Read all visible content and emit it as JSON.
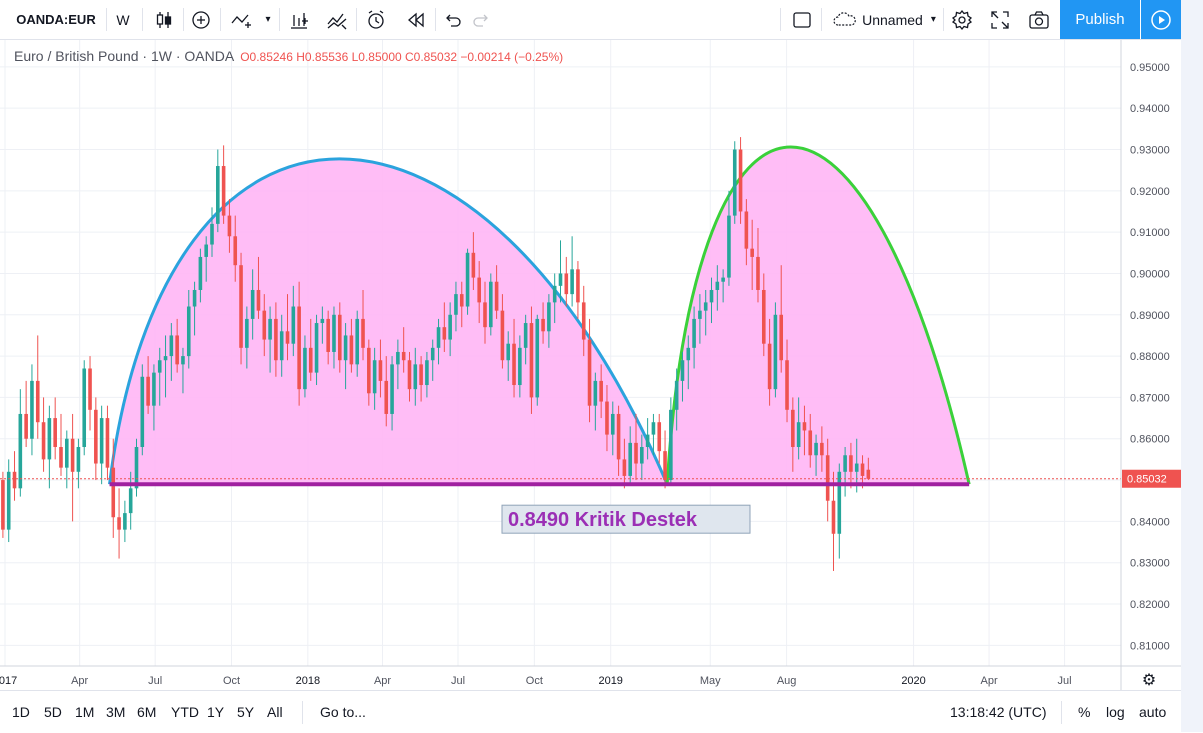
{
  "toolbar": {
    "symbol": "OANDA:EUR",
    "interval": "W",
    "layout_name": "Unnamed",
    "publish_label": "Publish",
    "icons": [
      "candles-icon",
      "add-indicator-icon",
      "indicators-icon",
      "compare-icon",
      "alerts-icon",
      "replay-icon",
      "undo-icon",
      "redo-icon",
      "fullscreen-icon",
      "settings-icon",
      "snapshot-icon",
      "play-icon"
    ]
  },
  "legend": {
    "title": "Euro / British Pound · 1W · OANDA",
    "ohlc": "O0.85246 H0.85536 L0.85000 C0.85032 −0.00214 (−0.25%)"
  },
  "bottom": {
    "ranges": [
      "1D",
      "5D",
      "1M",
      "3M",
      "6M",
      "YTD",
      "1Y",
      "5Y",
      "All"
    ],
    "goto": "Go to...",
    "time": "13:18:42 (UTC)",
    "percent": "%",
    "log": "log",
    "auto": "auto"
  },
  "colors": {
    "up": "#26a69a",
    "down": "#ef5350",
    "fill": "#ffb6f5",
    "arc1": "#2ba3dd",
    "arc2": "#3ad13a",
    "support": "#a020a0",
    "accent": "#2196f3"
  },
  "chart_data": {
    "type": "candlestick",
    "symbol": "EURGBP",
    "timeframe": "1W",
    "ylim": [
      0.805,
      0.9565
    ],
    "y_ticks": [
      "0.95000",
      "0.94000",
      "0.93000",
      "0.92000",
      "0.91000",
      "0.90000",
      "0.89000",
      "0.88000",
      "0.87000",
      "0.86000",
      "0.85000",
      "0.84000",
      "0.83000",
      "0.82000",
      "0.81000"
    ],
    "x_ticks": [
      {
        "label": "2017",
        "date": "2017-01-01"
      },
      {
        "label": "Apr",
        "date": "2017-04-01"
      },
      {
        "label": "Jul",
        "date": "2017-07-01"
      },
      {
        "label": "Oct",
        "date": "2017-10-01"
      },
      {
        "label": "2018",
        "date": "2018-01-01"
      },
      {
        "label": "Apr",
        "date": "2018-04-01"
      },
      {
        "label": "Jul",
        "date": "2018-07-01"
      },
      {
        "label": "Oct",
        "date": "2018-10-01"
      },
      {
        "label": "2019",
        "date": "2019-01-01"
      },
      {
        "label": "May",
        "date": "2019-05-01"
      },
      {
        "label": "Aug",
        "date": "2019-08-01"
      },
      {
        "label": "2020",
        "date": "2020-01-01"
      },
      {
        "label": "Apr",
        "date": "2020-04-01"
      },
      {
        "label": "Jul",
        "date": "2020-07-01"
      }
    ],
    "x_range": [
      "2016-12-26",
      "2020-09-07"
    ],
    "grid": true,
    "last_price": "0.85032",
    "support": {
      "value": 0.849,
      "label": "0.8490 Kritik Destek",
      "from": "2017-05-07",
      "to": "2020-03-08"
    },
    "arcs": [
      {
        "from": "2017-05-07",
        "to": "2019-03-10",
        "peak_date": "2018-04-01",
        "peak": 0.931
      },
      {
        "from": "2019-03-10",
        "to": "2020-03-08",
        "peak_date": "2019-09-01",
        "peak": 0.934
      }
    ],
    "candles": [
      [
        0.85,
        0.852,
        0.836,
        0.838
      ],
      [
        0.838,
        0.855,
        0.835,
        0.852
      ],
      [
        0.852,
        0.857,
        0.845,
        0.848
      ],
      [
        0.848,
        0.872,
        0.846,
        0.866
      ],
      [
        0.866,
        0.874,
        0.858,
        0.86
      ],
      [
        0.86,
        0.878,
        0.856,
        0.874
      ],
      [
        0.874,
        0.885,
        0.86,
        0.864
      ],
      [
        0.864,
        0.87,
        0.852,
        0.855
      ],
      [
        0.855,
        0.868,
        0.848,
        0.865
      ],
      [
        0.865,
        0.87,
        0.855,
        0.858
      ],
      [
        0.858,
        0.866,
        0.851,
        0.853
      ],
      [
        0.853,
        0.862,
        0.848,
        0.86
      ],
      [
        0.86,
        0.866,
        0.84,
        0.852
      ],
      [
        0.852,
        0.86,
        0.848,
        0.858
      ],
      [
        0.858,
        0.879,
        0.856,
        0.877
      ],
      [
        0.877,
        0.88,
        0.862,
        0.867
      ],
      [
        0.867,
        0.87,
        0.85,
        0.854
      ],
      [
        0.854,
        0.868,
        0.849,
        0.865
      ],
      [
        0.865,
        0.868,
        0.85,
        0.853
      ],
      [
        0.853,
        0.86,
        0.836,
        0.841
      ],
      [
        0.841,
        0.848,
        0.831,
        0.838
      ],
      [
        0.838,
        0.845,
        0.835,
        0.842
      ],
      [
        0.842,
        0.852,
        0.838,
        0.848
      ],
      [
        0.848,
        0.86,
        0.846,
        0.858
      ],
      [
        0.858,
        0.878,
        0.856,
        0.875
      ],
      [
        0.875,
        0.88,
        0.866,
        0.868
      ],
      [
        0.868,
        0.878,
        0.862,
        0.876
      ],
      [
        0.876,
        0.882,
        0.868,
        0.879
      ],
      [
        0.879,
        0.885,
        0.87,
        0.88
      ],
      [
        0.88,
        0.888,
        0.874,
        0.885
      ],
      [
        0.885,
        0.889,
        0.876,
        0.878
      ],
      [
        0.878,
        0.882,
        0.871,
        0.88
      ],
      [
        0.88,
        0.896,
        0.877,
        0.892
      ],
      [
        0.892,
        0.898,
        0.885,
        0.896
      ],
      [
        0.896,
        0.906,
        0.893,
        0.904
      ],
      [
        0.904,
        0.909,
        0.898,
        0.907
      ],
      [
        0.907,
        0.916,
        0.904,
        0.912
      ],
      [
        0.912,
        0.93,
        0.91,
        0.926
      ],
      [
        0.926,
        0.931,
        0.912,
        0.914
      ],
      [
        0.914,
        0.918,
        0.905,
        0.909
      ],
      [
        0.909,
        0.914,
        0.898,
        0.902
      ],
      [
        0.902,
        0.905,
        0.878,
        0.882
      ],
      [
        0.882,
        0.892,
        0.877,
        0.889
      ],
      [
        0.889,
        0.901,
        0.884,
        0.896
      ],
      [
        0.896,
        0.904,
        0.889,
        0.891
      ],
      [
        0.891,
        0.895,
        0.88,
        0.884
      ],
      [
        0.884,
        0.892,
        0.876,
        0.889
      ],
      [
        0.889,
        0.893,
        0.875,
        0.879
      ],
      [
        0.879,
        0.89,
        0.875,
        0.886
      ],
      [
        0.886,
        0.895,
        0.879,
        0.883
      ],
      [
        0.883,
        0.897,
        0.88,
        0.892
      ],
      [
        0.892,
        0.898,
        0.868,
        0.872
      ],
      [
        0.872,
        0.885,
        0.87,
        0.882
      ],
      [
        0.882,
        0.889,
        0.874,
        0.876
      ],
      [
        0.876,
        0.89,
        0.873,
        0.888
      ],
      [
        0.888,
        0.892,
        0.883,
        0.889
      ],
      [
        0.889,
        0.891,
        0.878,
        0.881
      ],
      [
        0.881,
        0.892,
        0.877,
        0.89
      ],
      [
        0.89,
        0.893,
        0.876,
        0.879
      ],
      [
        0.879,
        0.888,
        0.872,
        0.885
      ],
      [
        0.885,
        0.889,
        0.876,
        0.878
      ],
      [
        0.878,
        0.891,
        0.875,
        0.889
      ],
      [
        0.889,
        0.896,
        0.879,
        0.882
      ],
      [
        0.882,
        0.884,
        0.868,
        0.871
      ],
      [
        0.871,
        0.882,
        0.867,
        0.879
      ],
      [
        0.879,
        0.884,
        0.87,
        0.874
      ],
      [
        0.874,
        0.88,
        0.863,
        0.866
      ],
      [
        0.866,
        0.88,
        0.862,
        0.878
      ],
      [
        0.878,
        0.884,
        0.872,
        0.881
      ],
      [
        0.881,
        0.887,
        0.876,
        0.879
      ],
      [
        0.879,
        0.881,
        0.869,
        0.872
      ],
      [
        0.872,
        0.882,
        0.868,
        0.878
      ],
      [
        0.878,
        0.88,
        0.869,
        0.873
      ],
      [
        0.873,
        0.881,
        0.87,
        0.879
      ],
      [
        0.879,
        0.884,
        0.874,
        0.882
      ],
      [
        0.882,
        0.889,
        0.878,
        0.887
      ],
      [
        0.887,
        0.893,
        0.881,
        0.884
      ],
      [
        0.884,
        0.893,
        0.88,
        0.89
      ],
      [
        0.89,
        0.898,
        0.886,
        0.895
      ],
      [
        0.895,
        0.898,
        0.887,
        0.892
      ],
      [
        0.892,
        0.906,
        0.89,
        0.905
      ],
      [
        0.905,
        0.91,
        0.896,
        0.899
      ],
      [
        0.899,
        0.903,
        0.888,
        0.893
      ],
      [
        0.893,
        0.898,
        0.883,
        0.887
      ],
      [
        0.887,
        0.9,
        0.885,
        0.898
      ],
      [
        0.898,
        0.902,
        0.889,
        0.891
      ],
      [
        0.891,
        0.895,
        0.877,
        0.879
      ],
      [
        0.879,
        0.886,
        0.874,
        0.883
      ],
      [
        0.883,
        0.889,
        0.87,
        0.873
      ],
      [
        0.873,
        0.885,
        0.87,
        0.882
      ],
      [
        0.882,
        0.89,
        0.878,
        0.888
      ],
      [
        0.888,
        0.892,
        0.866,
        0.87
      ],
      [
        0.87,
        0.89,
        0.868,
        0.889
      ],
      [
        0.889,
        0.893,
        0.883,
        0.886
      ],
      [
        0.886,
        0.895,
        0.882,
        0.893
      ],
      [
        0.893,
        0.9,
        0.888,
        0.897
      ],
      [
        0.897,
        0.908,
        0.893,
        0.9
      ],
      [
        0.9,
        0.904,
        0.892,
        0.895
      ],
      [
        0.895,
        0.909,
        0.892,
        0.901
      ],
      [
        0.901,
        0.903,
        0.889,
        0.893
      ],
      [
        0.893,
        0.897,
        0.88,
        0.884
      ],
      [
        0.884,
        0.889,
        0.864,
        0.868
      ],
      [
        0.868,
        0.876,
        0.862,
        0.874
      ],
      [
        0.874,
        0.878,
        0.865,
        0.869
      ],
      [
        0.869,
        0.873,
        0.857,
        0.861
      ],
      [
        0.861,
        0.869,
        0.856,
        0.866
      ],
      [
        0.866,
        0.868,
        0.851,
        0.855
      ],
      [
        0.855,
        0.86,
        0.848,
        0.851
      ],
      [
        0.851,
        0.863,
        0.849,
        0.859
      ],
      [
        0.859,
        0.866,
        0.85,
        0.854
      ],
      [
        0.854,
        0.861,
        0.85,
        0.858
      ],
      [
        0.858,
        0.865,
        0.855,
        0.861
      ],
      [
        0.861,
        0.866,
        0.856,
        0.864
      ],
      [
        0.864,
        0.866,
        0.854,
        0.857
      ],
      [
        0.857,
        0.862,
        0.848,
        0.85
      ],
      [
        0.85,
        0.87,
        0.849,
        0.867
      ],
      [
        0.867,
        0.877,
        0.862,
        0.874
      ],
      [
        0.874,
        0.881,
        0.869,
        0.879
      ],
      [
        0.879,
        0.885,
        0.872,
        0.882
      ],
      [
        0.882,
        0.892,
        0.877,
        0.889
      ],
      [
        0.889,
        0.895,
        0.883,
        0.891
      ],
      [
        0.891,
        0.896,
        0.885,
        0.893
      ],
      [
        0.893,
        0.899,
        0.888,
        0.896
      ],
      [
        0.896,
        0.902,
        0.891,
        0.898
      ],
      [
        0.898,
        0.901,
        0.893,
        0.899
      ],
      [
        0.899,
        0.92,
        0.897,
        0.914
      ],
      [
        0.914,
        0.932,
        0.912,
        0.93
      ],
      [
        0.93,
        0.933,
        0.912,
        0.915
      ],
      [
        0.915,
        0.918,
        0.902,
        0.906
      ],
      [
        0.906,
        0.913,
        0.896,
        0.904
      ],
      [
        0.904,
        0.911,
        0.893,
        0.896
      ],
      [
        0.896,
        0.9,
        0.88,
        0.883
      ],
      [
        0.883,
        0.889,
        0.868,
        0.872
      ],
      [
        0.872,
        0.893,
        0.87,
        0.89
      ],
      [
        0.89,
        0.902,
        0.876,
        0.879
      ],
      [
        0.879,
        0.884,
        0.864,
        0.867
      ],
      [
        0.867,
        0.87,
        0.852,
        0.858
      ],
      [
        0.858,
        0.87,
        0.855,
        0.864
      ],
      [
        0.864,
        0.868,
        0.856,
        0.862
      ],
      [
        0.862,
        0.866,
        0.853,
        0.856
      ],
      [
        0.856,
        0.861,
        0.851,
        0.859
      ],
      [
        0.859,
        0.863,
        0.852,
        0.856
      ],
      [
        0.856,
        0.86,
        0.84,
        0.845
      ],
      [
        0.845,
        0.852,
        0.828,
        0.837
      ],
      [
        0.837,
        0.854,
        0.831,
        0.852
      ],
      [
        0.852,
        0.858,
        0.846,
        0.856
      ],
      [
        0.856,
        0.859,
        0.848,
        0.852
      ],
      [
        0.852,
        0.86,
        0.847,
        0.854
      ],
      [
        0.854,
        0.856,
        0.848,
        0.851
      ],
      [
        0.8525,
        0.8554,
        0.85,
        0.8503
      ]
    ]
  }
}
